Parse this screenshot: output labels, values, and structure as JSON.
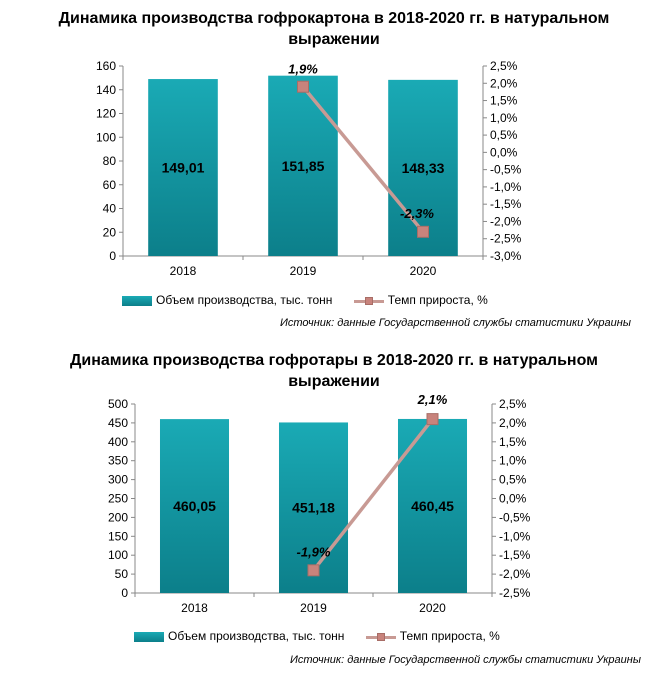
{
  "chart_data": [
    {
      "type": "bar+line",
      "title_line1": "Динамика производства гофрокартона в 2018-2020 гг. в натуральном",
      "title_line2": "выражении",
      "categories": [
        "2018",
        "2019",
        "2020"
      ],
      "series": [
        {
          "name": "Объем производства, тыс. тонн",
          "type": "bar",
          "axis": "left",
          "values": [
            149.01,
            151.85,
            148.33
          ],
          "labels": [
            "149,01",
            "151,85",
            "148,33"
          ]
        },
        {
          "name": "Темп прироста, %",
          "type": "line",
          "axis": "right",
          "values": [
            null,
            1.9,
            -2.3
          ],
          "labels": [
            "",
            "1,9%",
            "-2,3%"
          ]
        }
      ],
      "y_left": {
        "min": 0,
        "max": 160,
        "step": 20,
        "ticks": [
          "0",
          "20",
          "40",
          "60",
          "80",
          "100",
          "120",
          "140",
          "160"
        ]
      },
      "y_right": {
        "min": -3.0,
        "max": 2.5,
        "step": 0.5,
        "ticks": [
          "-3,0%",
          "-2,5%",
          "-2,0%",
          "-1,5%",
          "-1,0%",
          "-0,5%",
          "0,0%",
          "0,5%",
          "1,0%",
          "1,5%",
          "2,0%",
          "2,5%"
        ]
      },
      "legend_position": "bottom",
      "source": "Источник: данные Государственной службы статистики Украины"
    },
    {
      "type": "bar+line",
      "title_line1": "Динамика производства гофротары в 2018-2020 гг. в натуральном",
      "title_line2": "выражении",
      "categories": [
        "2018",
        "2019",
        "2020"
      ],
      "series": [
        {
          "name": "Объем производства, тыс. тонн",
          "type": "bar",
          "axis": "left",
          "values": [
            460.05,
            451.18,
            460.45
          ],
          "labels": [
            "460,05",
            "451,18",
            "460,45"
          ]
        },
        {
          "name": "Темп прироста, %",
          "type": "line",
          "axis": "right",
          "values": [
            null,
            -1.9,
            2.1
          ],
          "labels": [
            "",
            "-1,9%",
            "2,1%"
          ]
        }
      ],
      "y_left": {
        "min": 0,
        "max": 500,
        "step": 50,
        "ticks": [
          "0",
          "50",
          "100",
          "150",
          "200",
          "250",
          "300",
          "350",
          "400",
          "450",
          "500"
        ]
      },
      "y_right": {
        "min": -2.5,
        "max": 2.5,
        "step": 0.5,
        "ticks": [
          "-2,5%",
          "-2,0%",
          "-1,5%",
          "-1,0%",
          "-0,5%",
          "0,0%",
          "0,5%",
          "1,0%",
          "1,5%",
          "2,0%",
          "2,5%"
        ]
      },
      "legend_position": "bottom",
      "source": "Источник: данные Государственной службы статистики Украины"
    }
  ],
  "colors": {
    "bar_top": "#1aaab5",
    "bar_bottom": "#0c7f8a",
    "line": "#c89a94",
    "marker": "#c8837c"
  }
}
